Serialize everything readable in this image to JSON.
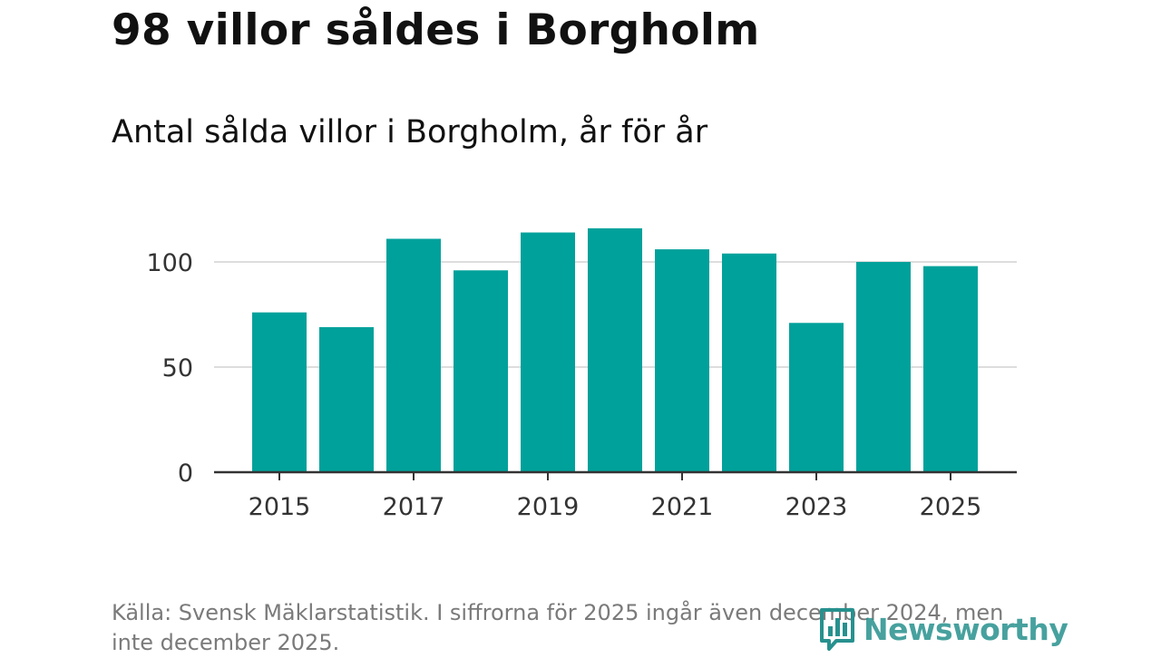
{
  "title": "98 villor såldes i Borgholm",
  "subtitle": "Antal sålda villor i Borgholm, år för år",
  "source": "Källa: Svensk Mäklarstatistik. I siffrorna för 2025 ingår även december 2024, men inte december 2025.",
  "logo": {
    "text": "Newsworthy",
    "icon": "bar-chart-icon",
    "color": "#27918e"
  },
  "colors": {
    "bar": "#00a19b",
    "grid": "#dddddd",
    "axis": "#333333"
  },
  "chart_data": {
    "type": "bar",
    "title": "98 villor såldes i Borgholm",
    "subtitle": "Antal sålda villor i Borgholm, år för år",
    "categories": [
      "2015",
      "2016",
      "2017",
      "2018",
      "2019",
      "2020",
      "2021",
      "2022",
      "2023",
      "2024",
      "2025"
    ],
    "values": [
      76,
      69,
      111,
      96,
      114,
      116,
      106,
      104,
      71,
      100,
      98
    ],
    "x_tick_labels": [
      "2015",
      "2017",
      "2019",
      "2021",
      "2023",
      "2025"
    ],
    "y_ticks": [
      0,
      50,
      100
    ],
    "ylim": [
      0,
      120
    ],
    "xlabel": "",
    "ylabel": "",
    "grid": true,
    "legend": "none"
  }
}
